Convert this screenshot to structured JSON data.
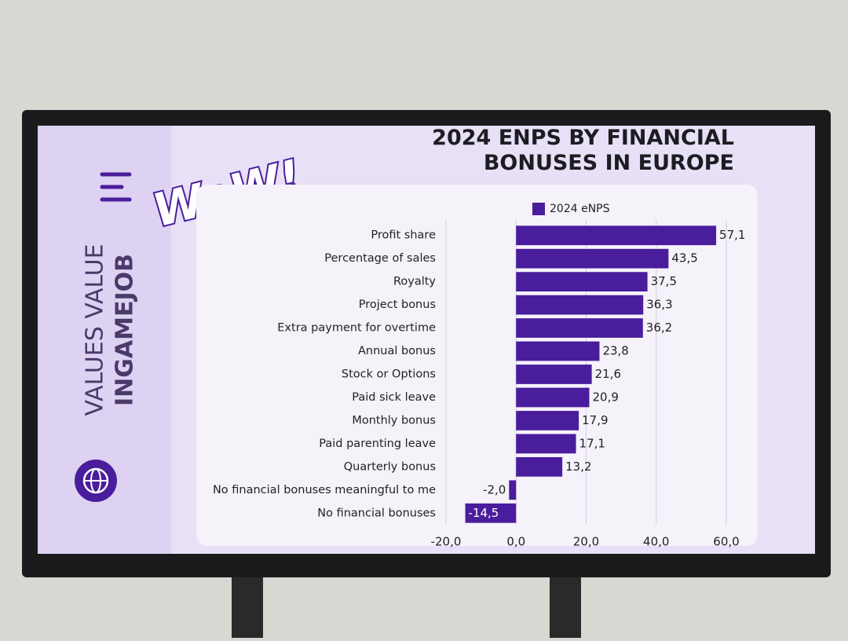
{
  "logo": "WoW!",
  "side_panel": {
    "line1": "VALUES VALUE",
    "line2": "INGAMEJOB"
  },
  "chart_data": {
    "type": "hbar",
    "title": "2024 ENPS BY FINANCIAL BONUSES IN EUROPE",
    "categories": [
      "Profit share",
      "Percentage of sales",
      "Royalty",
      "Project bonus",
      "Extra payment for overtime",
      "Annual bonus",
      "Stock or Options",
      "Paid sick leave",
      "Monthly bonus",
      "Paid parenting leave",
      "Quarterly bonus",
      "No financial bonuses meaningful to me",
      "No financial bonuses"
    ],
    "series": [
      {
        "name": "2024 eNPS",
        "color": "#4a1d9c",
        "values": [
          57.1,
          43.5,
          37.5,
          36.3,
          36.2,
          23.8,
          21.6,
          20.9,
          17.9,
          17.1,
          13.2,
          -2.0,
          -14.5
        ],
        "value_labels": [
          "57,1",
          "43,5",
          "37,5",
          "36,3",
          "36,2",
          "23,8",
          "21,6",
          "20,9",
          "17,9",
          "17,1",
          "13,2",
          "-2,0",
          "-14,5"
        ]
      }
    ],
    "xlim": [
      -20,
      60
    ],
    "xticks": [
      {
        "value": -20,
        "label": "-20,0"
      },
      {
        "value": 0,
        "label": "0,0"
      },
      {
        "value": 20,
        "label": "20,0"
      },
      {
        "value": 40,
        "label": "40,0"
      },
      {
        "value": 60,
        "label": "60,0"
      }
    ],
    "grid": true,
    "legend": "top"
  }
}
